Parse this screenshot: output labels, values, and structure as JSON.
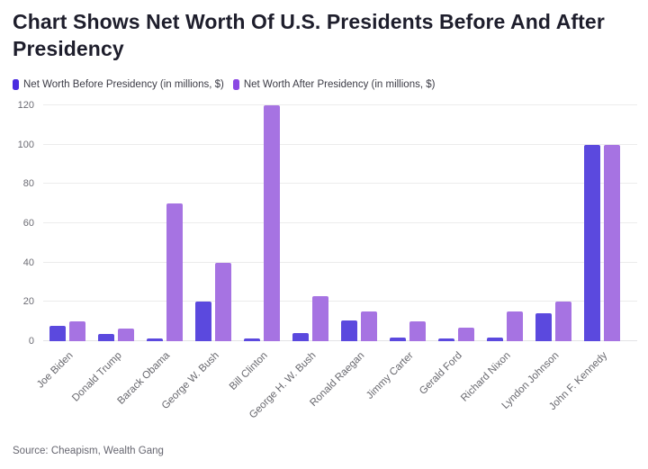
{
  "header": {
    "title": "Chart Shows Net Worth Of U.S. Presidents Before And After Presidency"
  },
  "legend": [
    {
      "label": "Net Worth Before Presidency (in millions, $)",
      "color": "#4b2de0"
    },
    {
      "label": "Net Worth After Presidency (in millions, $)",
      "color": "#8b49e3"
    }
  ],
  "footer": {
    "source": "Source: Cheapism, Wealth Gang"
  },
  "colors": {
    "bar_before": "#5b49de",
    "bar_after": "#a673e2",
    "grid": "#ececec",
    "axis_text": "#6c6c74",
    "title_text": "#1e1e2c"
  },
  "chart_data": {
    "type": "bar",
    "title": "Chart Shows Net Worth Of U.S. Presidents Before And After Presidency",
    "xlabel": "",
    "ylabel": "",
    "ylim": [
      0,
      120
    ],
    "yticks": [
      0,
      20,
      40,
      60,
      80,
      100,
      120
    ],
    "grid": "horizontal",
    "legend_position": "top-left",
    "categories": [
      "Joe Biden",
      "Donald Trump",
      "Barack Obama",
      "George W. Bush",
      "Bill Clinton",
      "George H. W. Bush",
      "Ronald Raegan",
      "Jimmy Carter",
      "Gerald Ford",
      "Richard Nixon",
      "Lyndon Johnson",
      "John F. Kennedy"
    ],
    "series": [
      {
        "name": "Net Worth Before Presidency (in millions, $)",
        "color": "#5b49de",
        "values": [
          8,
          3.5,
          1.5,
          20,
          1.5,
          4,
          10.5,
          2,
          1.2,
          2,
          14,
          100
        ]
      },
      {
        "name": "Net Worth After Presidency (in millions, $)",
        "color": "#a673e2",
        "values": [
          10,
          6.5,
          70,
          40,
          120,
          23,
          15,
          10,
          7,
          15,
          20,
          100
        ]
      }
    ]
  }
}
